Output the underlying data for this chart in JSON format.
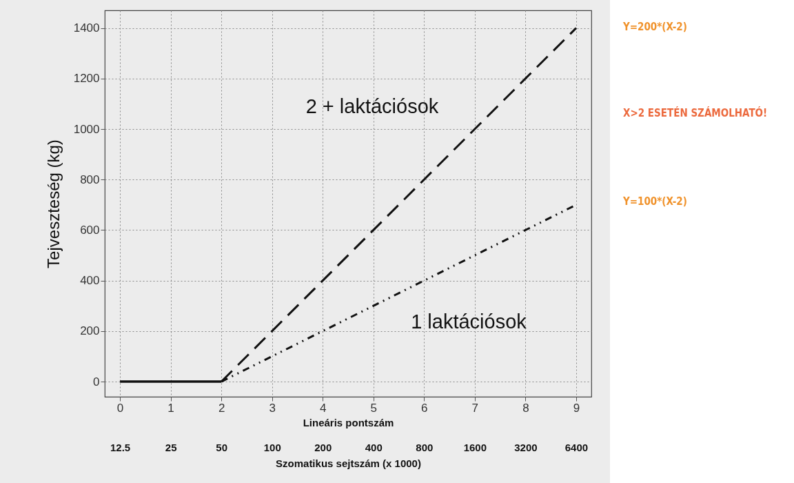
{
  "chart_data": {
    "type": "line",
    "xlabel": "Lineáris pontszám",
    "ylabel": "Tejveszteség (kg)",
    "x2label": "Szomatikus sejtszám (x 1000)",
    "xlim": [
      -0.3,
      9.3
    ],
    "xticks": [
      0,
      1,
      2,
      3,
      4,
      5,
      6,
      7,
      8,
      9
    ],
    "x2lim": [
      10.15,
      7879
    ],
    "log": "x2",
    "x2ticks": [
      12.5,
      25,
      50,
      100,
      200,
      400,
      800,
      1600,
      3200,
      6400
    ],
    "ylim": [
      -60,
      1470
    ],
    "yticks": [
      0,
      200,
      400,
      600,
      800,
      1000,
      1200,
      1400
    ],
    "grid": true,
    "marker": "none",
    "series": [
      {
        "color": "#111111",
        "line_style": "solid",
        "x": [
          0,
          2
        ],
        "values": [
          0,
          0
        ]
      },
      {
        "color": "#111111",
        "line_style": "dashed",
        "x": [
          2,
          9
        ],
        "values": [
          0,
          1400
        ]
      },
      {
        "color": "#111111",
        "line_style": "dotted",
        "x": [
          2,
          9
        ],
        "values": [
          0,
          700
        ]
      }
    ],
    "annotations": [
      "2 + laktációsok",
      "1 laktációsok",
      "Y=200*(X-2)",
      "X>2 ESETÉN SZÁMOLHATÓ!",
      "Y=100*(X-2)"
    ]
  }
}
